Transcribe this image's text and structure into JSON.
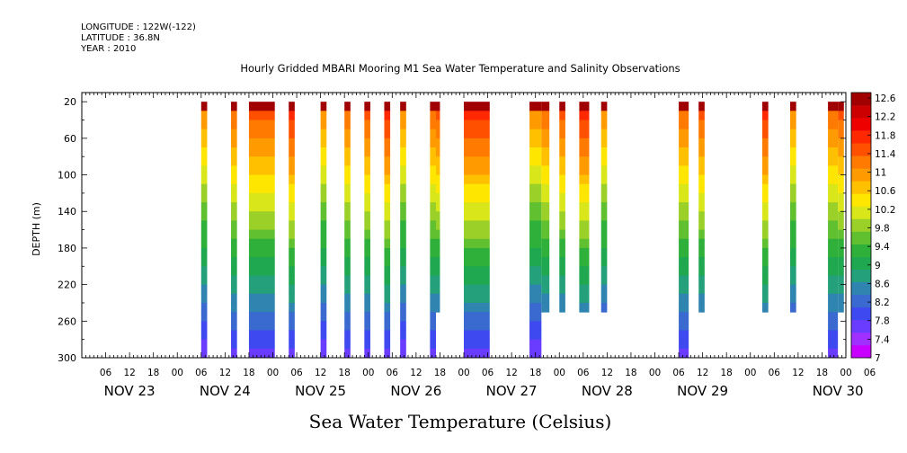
{
  "header": {
    "longitude": "LONGITUDE : 122W(-122)",
    "latitude": "LATITUDE : 36.8N",
    "year": "YEAR : 2010"
  },
  "chart_data": {
    "type": "heatmap",
    "title": "Hourly Gridded MBARI Mooring M1 Sea Water Temperature and Salinity Observations",
    "ylabel": "DEPTH (m)",
    "xlabel": "Sea Water Temperature (Celsius)",
    "y_ticks": [
      20,
      60,
      100,
      140,
      180,
      220,
      260,
      300
    ],
    "ylim": [
      10,
      300
    ],
    "x_hour_ticks": [
      "06",
      "12",
      "18",
      "00",
      "06",
      "12",
      "18",
      "00",
      "06",
      "12",
      "18",
      "00",
      "06",
      "12",
      "18",
      "00",
      "06",
      "12",
      "18",
      "00",
      "06",
      "12",
      "18",
      "00",
      "06",
      "12",
      "18",
      "00",
      "06",
      "12",
      "18",
      "00",
      "06"
    ],
    "x_day_labels": [
      "NOV 23",
      "NOV 24",
      "NOV 25",
      "NOV 26",
      "NOV 27",
      "NOV 28",
      "NOV 29",
      "NOV 30"
    ],
    "xlim_hours": [
      0,
      192
    ],
    "colorbar": {
      "levels": [
        "7",
        "7.4",
        "7.8",
        "8.2",
        "8.6",
        "9",
        "9.4",
        "9.8",
        "10.2",
        "10.6",
        "11",
        "11.4",
        "11.8",
        "12.2",
        "12.6"
      ],
      "colors": [
        "#c800ff",
        "#a030ff",
        "#6a3cff",
        "#3f49f0",
        "#3a6ad0",
        "#2f85b0",
        "#24a07a",
        "#1fa850",
        "#2eb03a",
        "#60c030",
        "#9ad028",
        "#d8e61a",
        "#ffe600",
        "#ffc000",
        "#ff9a00",
        "#ff7a00",
        "#ff5000",
        "#ff2800",
        "#ee0000",
        "#cc0000",
        "#a00000"
      ]
    },
    "observation_bands": [
      {
        "start_hr": 30,
        "end_hr": 31.5,
        "max_depth": 300
      },
      {
        "start_hr": 37.5,
        "end_hr": 39,
        "max_depth": 300
      },
      {
        "start_hr": 42,
        "end_hr": 48.5,
        "max_depth": 300
      },
      {
        "start_hr": 52,
        "end_hr": 53.5,
        "max_depth": 300
      },
      {
        "start_hr": 60,
        "end_hr": 61.5,
        "max_depth": 300
      },
      {
        "start_hr": 66,
        "end_hr": 67.5,
        "max_depth": 300
      },
      {
        "start_hr": 71,
        "end_hr": 72.5,
        "max_depth": 300
      },
      {
        "start_hr": 76,
        "end_hr": 77.5,
        "max_depth": 300
      },
      {
        "start_hr": 80,
        "end_hr": 81.5,
        "max_depth": 300
      },
      {
        "start_hr": 87.5,
        "end_hr": 89,
        "max_depth": 300
      },
      {
        "start_hr": 89,
        "end_hr": 90,
        "max_depth": 250
      },
      {
        "start_hr": 96,
        "end_hr": 102.5,
        "max_depth": 300
      },
      {
        "start_hr": 112.5,
        "end_hr": 115.5,
        "max_depth": 300
      },
      {
        "start_hr": 115.5,
        "end_hr": 117.5,
        "max_depth": 250
      },
      {
        "start_hr": 120,
        "end_hr": 121.5,
        "max_depth": 250
      },
      {
        "start_hr": 125,
        "end_hr": 127.5,
        "max_depth": 250
      },
      {
        "start_hr": 130.5,
        "end_hr": 132,
        "max_depth": 250
      },
      {
        "start_hr": 150,
        "end_hr": 152.5,
        "max_depth": 300
      },
      {
        "start_hr": 155,
        "end_hr": 156.5,
        "max_depth": 250
      },
      {
        "start_hr": 171,
        "end_hr": 172.5,
        "max_depth": 250
      },
      {
        "start_hr": 178,
        "end_hr": 179.5,
        "max_depth": 250
      },
      {
        "start_hr": 187.5,
        "end_hr": 190,
        "max_depth": 300
      },
      {
        "start_hr": 190,
        "end_hr": 191.5,
        "max_depth": 250
      }
    ]
  }
}
